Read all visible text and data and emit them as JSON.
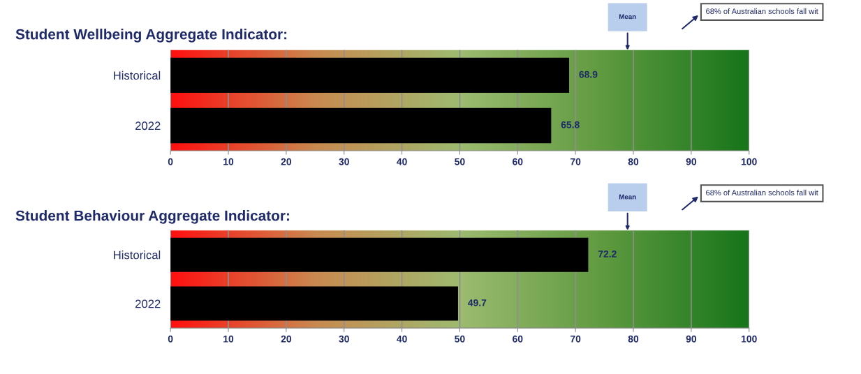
{
  "chart_data": [
    {
      "type": "bar",
      "orientation": "horizontal",
      "title": "Student Wellbeing Aggregate Indicator:",
      "categories": [
        "Historical",
        "2022"
      ],
      "values": [
        68.9,
        65.8
      ],
      "color": "#000000",
      "xlim": [
        0,
        100
      ],
      "xticks": [
        0,
        10,
        20,
        30,
        40,
        50,
        60,
        70,
        80,
        90,
        100
      ],
      "grid": "x",
      "data_labels": true,
      "annotations": [
        "Mean",
        "68% of Australian schools fall wit"
      ]
    },
    {
      "type": "bar",
      "orientation": "horizontal",
      "title": "Student Behaviour Aggregate Indicator:",
      "categories": [
        "Historical",
        "2022"
      ],
      "values": [
        72.2,
        49.7
      ],
      "color": "#000000",
      "xlim": [
        0,
        100
      ],
      "xticks": [
        0,
        10,
        20,
        30,
        40,
        50,
        60,
        70,
        80,
        90,
        100
      ],
      "grid": "x",
      "data_labels": true,
      "annotations": [
        "Mean",
        "68% of Australian schools fall wit"
      ]
    }
  ]
}
